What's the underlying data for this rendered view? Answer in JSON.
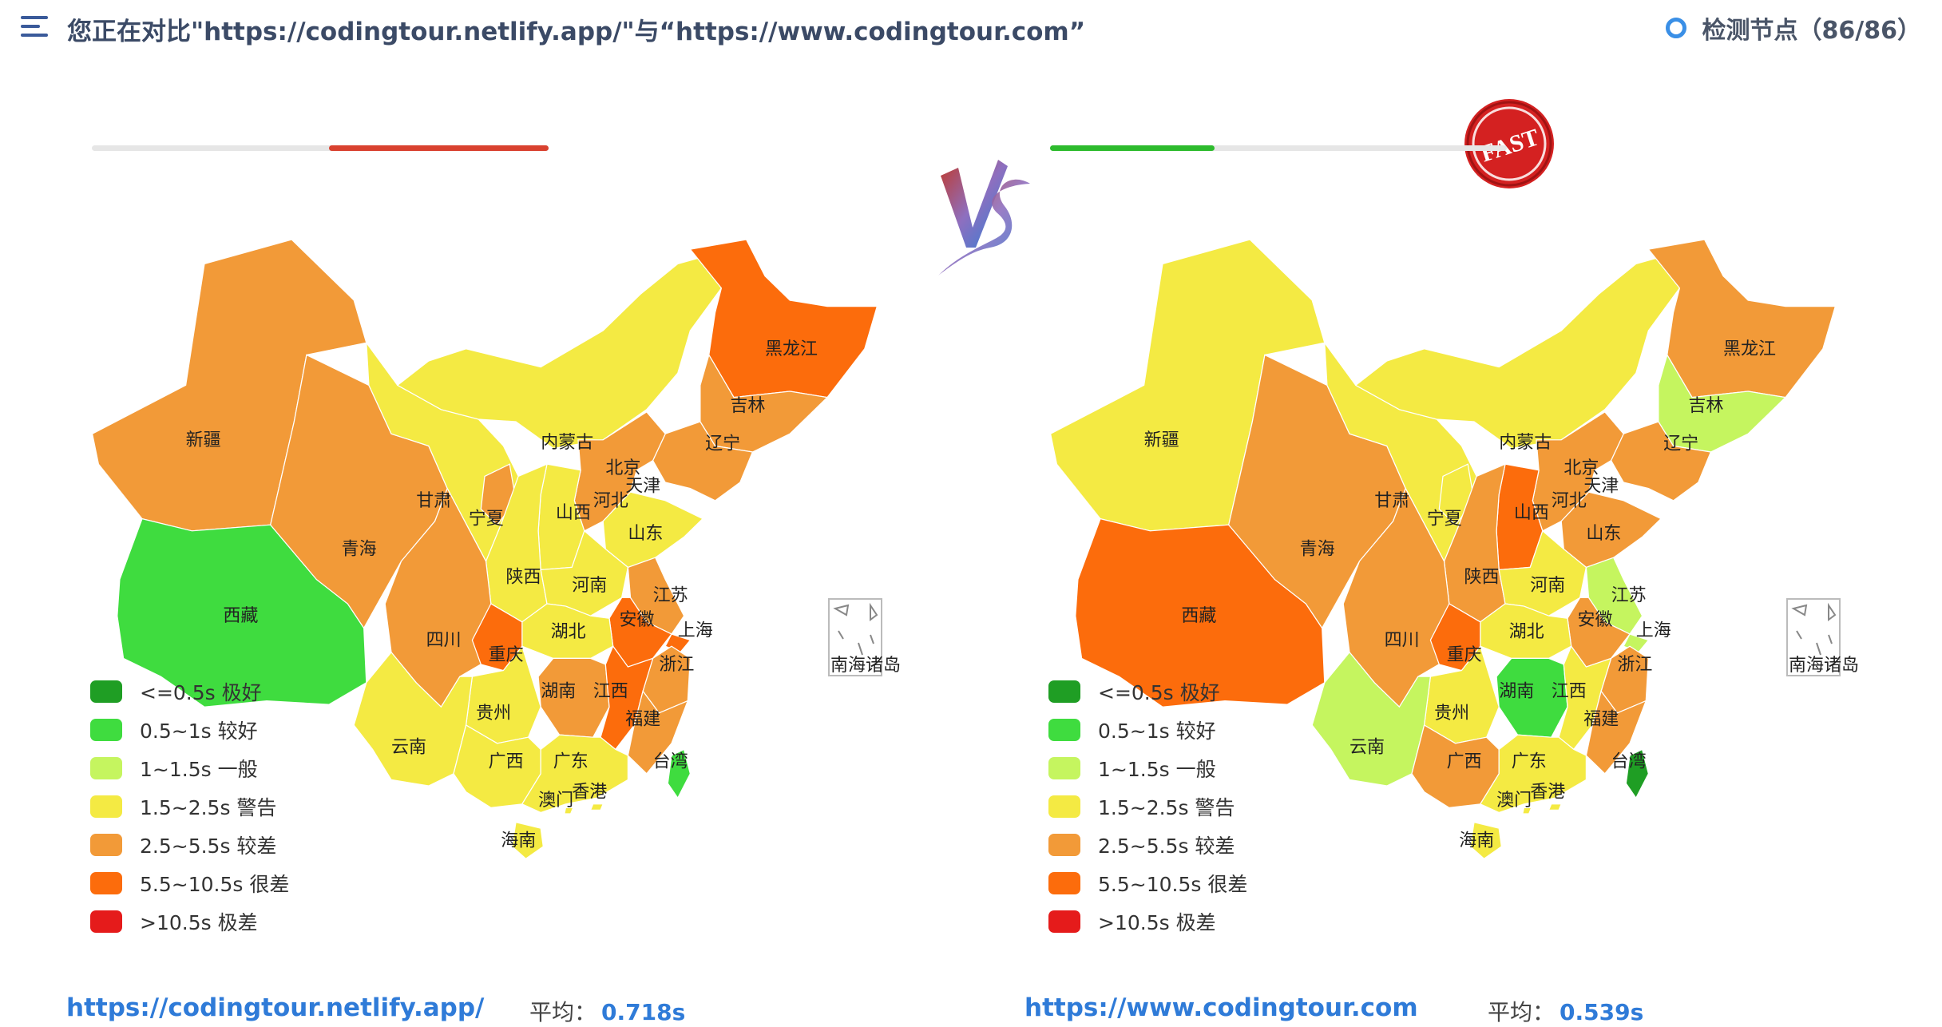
{
  "header": {
    "title": "您正在对比\"https://codingtour.netlify.app/\"与“https://www.codingtour.com”",
    "node_label": "检测节点（86/86）"
  },
  "badges": {
    "vs": "VS",
    "fast": "FAST"
  },
  "legend": [
    {
      "label": "<=0.5s 极好",
      "color": "#1f9e24"
    },
    {
      "label": "0.5~1s 较好",
      "color": "#3fdc3f"
    },
    {
      "label": "1~1.5s 一般",
      "color": "#c5f55f"
    },
    {
      "label": "1.5~2.5s 警告",
      "color": "#f4ea43"
    },
    {
      "label": "2.5~5.5s 较差",
      "color": "#f29a38"
    },
    {
      "label": "5.5~10.5s 很差",
      "color": "#fc6c0c"
    },
    {
      "label": ">10.5s 极差",
      "color": "#e51b1b"
    }
  ],
  "inset_label": "南海诸岛",
  "sites": [
    {
      "url": "https://codingtour.netlify.app/",
      "avg_label": "平均：",
      "avg_value": "0.718s",
      "bar_fill": 0.48,
      "bar_start": 0.52,
      "bar_color": "#d9412f",
      "provinces": {
        "新疆": "#f29a38",
        "西藏": "#3fdc3f",
        "青海": "#f29a38",
        "甘肃": "#f4ea43",
        "内蒙古": "#f4ea43",
        "黑龙江": "#fc6c0c",
        "吉林": "#f29a38",
        "辽宁": "#f29a38",
        "北京": "#f29a38",
        "天津": "#f29a38",
        "河北": "#f29a38",
        "山西": "#f4ea43",
        "山东": "#f4ea43",
        "宁夏": "#f29a38",
        "陕西": "#f4ea43",
        "河南": "#f4ea43",
        "江苏": "#f29a38",
        "安徽": "#fc6c0c",
        "上海": "#fc6c0c",
        "浙江": "#f29a38",
        "湖北": "#f4ea43",
        "四川": "#f29a38",
        "重庆": "#fc6c0c",
        "湖南": "#f29a38",
        "江西": "#fc6c0c",
        "福建": "#f29a38",
        "贵州": "#f4ea43",
        "云南": "#f4ea43",
        "广西": "#f4ea43",
        "广东": "#f4ea43",
        "香港": "#f4ea43",
        "澳门": "#f4ea43",
        "海南": "#f4ea43",
        "台湾": "#3fdc3f"
      }
    },
    {
      "url": "https://www.codingtour.com",
      "avg_label": "平均：",
      "avg_value": "0.539s",
      "bar_fill": 0.36,
      "bar_start": 0,
      "bar_color": "#2dbb2d",
      "provinces": {
        "新疆": "#f4ea43",
        "西藏": "#fc6c0c",
        "青海": "#f29a38",
        "甘肃": "#f4ea43",
        "内蒙古": "#f4ea43",
        "黑龙江": "#f29a38",
        "吉林": "#c5f55f",
        "辽宁": "#f29a38",
        "北京": "#f29a38",
        "天津": "#f29a38",
        "河北": "#f29a38",
        "山西": "#fc6c0c",
        "山东": "#f29a38",
        "宁夏": "#f4ea43",
        "陕西": "#f29a38",
        "河南": "#f4ea43",
        "江苏": "#c5f55f",
        "安徽": "#f29a38",
        "上海": "#c5f55f",
        "浙江": "#f29a38",
        "湖北": "#f4ea43",
        "四川": "#f29a38",
        "重庆": "#fc6c0c",
        "湖南": "#3fdc3f",
        "江西": "#f4ea43",
        "福建": "#f29a38",
        "贵州": "#f4ea43",
        "云南": "#c5f55f",
        "广西": "#f29a38",
        "广东": "#f4ea43",
        "香港": "#f4ea43",
        "澳门": "#f4ea43",
        "海南": "#f4ea43",
        "台湾": "#1f9e24"
      }
    }
  ]
}
